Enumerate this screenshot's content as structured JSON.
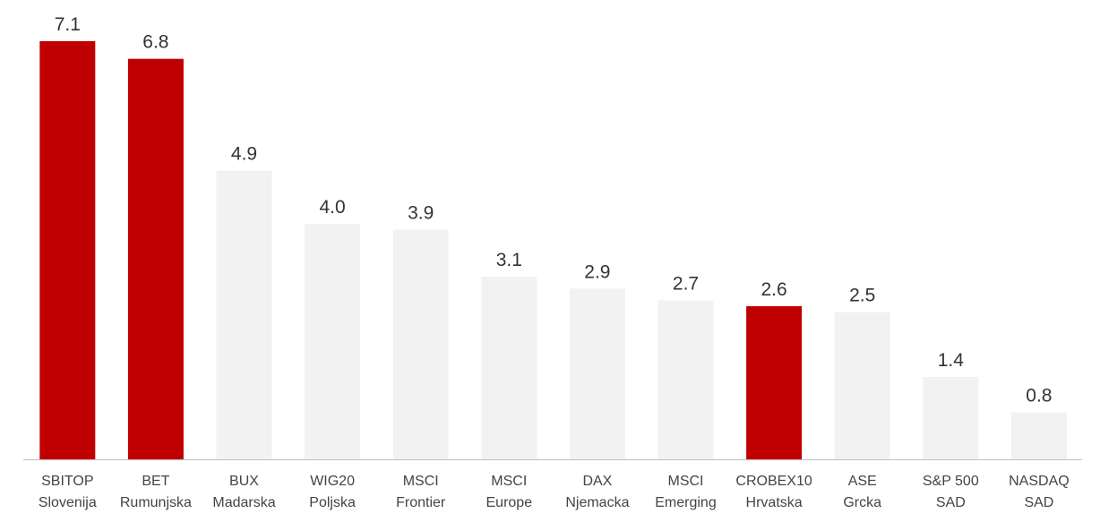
{
  "chart_data": {
    "type": "bar",
    "title": "",
    "xlabel": "",
    "ylabel": "",
    "categories": [
      [
        "SBITOP",
        "Slovenija"
      ],
      [
        "BET",
        "Rumunjska"
      ],
      [
        "BUX",
        "Madarska"
      ],
      [
        "WIG20",
        "Poljska"
      ],
      [
        "MSCI",
        "Frontier"
      ],
      [
        "MSCI",
        "Europe"
      ],
      [
        "DAX",
        "Njemacka"
      ],
      [
        "MSCI",
        "Emerging"
      ],
      [
        "CROBEX10",
        "Hrvatska"
      ],
      [
        "ASE",
        "Grcka"
      ],
      [
        "S&P 500",
        "SAD"
      ],
      [
        "NASDAQ",
        "SAD"
      ]
    ],
    "values": [
      7.1,
      6.8,
      4.9,
      4.0,
      3.9,
      3.1,
      2.9,
      2.7,
      2.6,
      2.5,
      1.4,
      0.8
    ],
    "value_labels": [
      "7.1",
      "6.8",
      "4.9",
      "4.0",
      "3.9",
      "3.1",
      "2.9",
      "2.7",
      "2.6",
      "2.5",
      "1.4",
      "0.8"
    ],
    "highlighted": [
      true,
      true,
      false,
      false,
      false,
      false,
      false,
      false,
      true,
      false,
      false,
      false
    ],
    "colors": {
      "highlight": "#c00000",
      "default": "#f2f2f2",
      "axis": "#bfbfbf"
    },
    "ylim": [
      0,
      7.1
    ],
    "grid": false,
    "legend": "none"
  }
}
